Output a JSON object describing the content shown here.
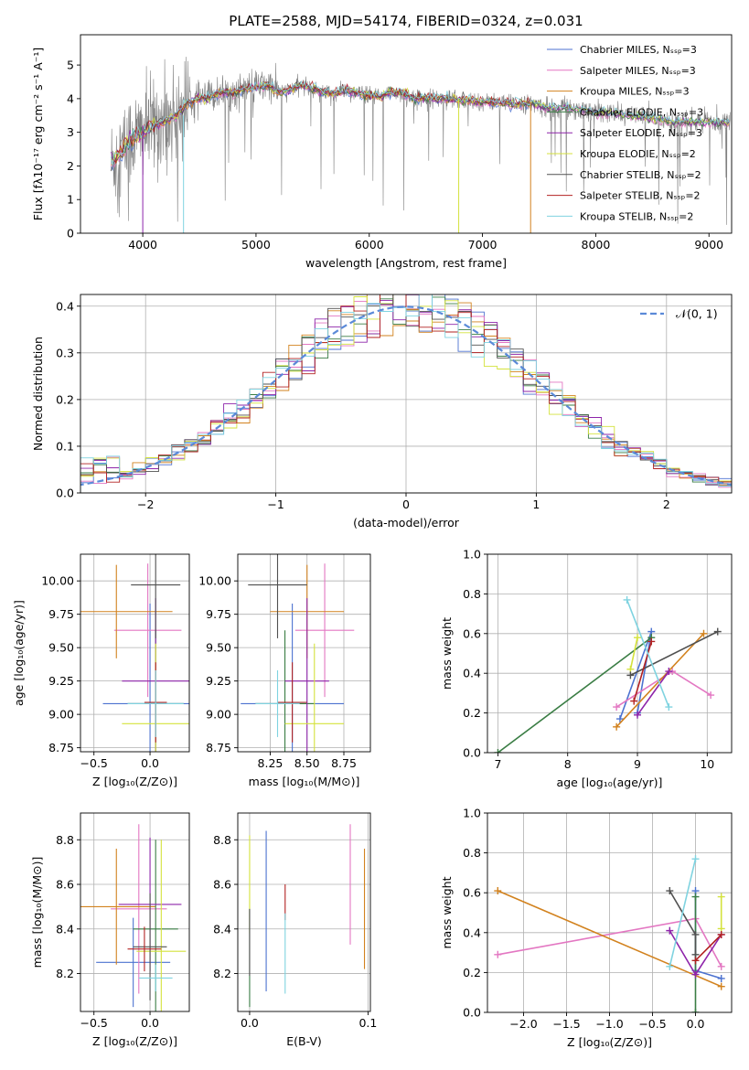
{
  "colors": [
    "#4c72d0",
    "#e377c2",
    "#d2821e",
    "#3a7d44",
    "#8e24aa",
    "#d4e23c",
    "#505050",
    "#b22222",
    "#7fd3e0"
  ],
  "chart_data": [
    {
      "id": "spectrum",
      "type": "line",
      "title": "PLATE=2588, MJD=54174, FIBERID=0324, z=0.031",
      "xlabel": "wavelength [Angstrom, rest frame]",
      "ylabel": "Flux [fλ10⁻¹⁷ erg cm⁻² s⁻¹ A⁻¹]",
      "xlim": [
        3450,
        9200
      ],
      "ylim": [
        0,
        5.9
      ],
      "xticks": [
        "4000",
        "5000",
        "6000",
        "7000",
        "8000",
        "9000"
      ],
      "yticks": [
        "0",
        "1",
        "2",
        "3",
        "4",
        "5"
      ],
      "legend": [
        "Chabrier MILES, Nₛₛₚ=3",
        "Salpeter MILES, Nₛₛₚ=3",
        "Kroupa MILES, Nₛₛₚ=3",
        "Chabrier ELODIE, Nₛₛₚ=3",
        "Salpeter ELODIE, Nₛₛₚ=3",
        "Kroupa ELODIE, Nₛₛₚ=2",
        "Chabrier STELIB, Nₛₛₚ=2",
        "Salpeter STELIB, Nₛₛₚ=2",
        "Kroupa STELIB, Nₛₛₚ=2"
      ],
      "legend_position": "upper right",
      "model_x": [
        3700,
        3800,
        3900,
        4000,
        4100,
        4200,
        4300,
        4400,
        4500,
        4600,
        4700,
        4800,
        4900,
        5000,
        5100,
        5200,
        5300,
        5400,
        5500,
        5600,
        5700,
        5800,
        5900,
        6000,
        6100,
        6200,
        6300,
        6400,
        6500,
        6600,
        6700,
        6800,
        6900,
        7000,
        7100,
        7200,
        7300,
        7400,
        7500,
        7600,
        7700,
        7800,
        7900,
        8000,
        8100,
        8200,
        8300,
        8400,
        8500,
        8600,
        8700,
        8800,
        8900,
        9000,
        9100,
        9200
      ],
      "model_y": [
        2.0,
        2.4,
        2.8,
        3.0,
        3.2,
        3.35,
        3.5,
        3.9,
        4.0,
        4.05,
        4.2,
        4.15,
        4.3,
        4.35,
        4.4,
        4.2,
        4.25,
        4.4,
        4.3,
        4.2,
        4.15,
        4.25,
        4.15,
        4.1,
        4.05,
        4.2,
        4.15,
        4.0,
        4.05,
        4.0,
        4.0,
        3.95,
        3.95,
        3.9,
        3.9,
        3.85,
        3.85,
        3.85,
        3.8,
        3.7,
        3.75,
        3.7,
        3.65,
        3.6,
        3.55,
        3.55,
        3.5,
        3.45,
        3.4,
        3.35,
        3.3,
        3.3,
        3.3,
        3.3,
        3.3,
        3.3
      ]
    },
    {
      "id": "residuals",
      "type": "line",
      "xlabel": "(data-model)/error",
      "ylabel": "Normed distribution",
      "xlim": [
        -2.5,
        2.5
      ],
      "ylim": [
        0,
        0.425
      ],
      "xticks": [
        "−2",
        "−1",
        "0",
        "1",
        "2"
      ],
      "yticks": [
        "0.0",
        "0.1",
        "0.2",
        "0.3",
        "0.4"
      ],
      "legend": [
        "𝒩(0, 1)"
      ]
    },
    {
      "id": "age-vs-z",
      "type": "scatter",
      "xlabel": "Z [log₁₀(Z/Z⊙)]",
      "ylabel": "age  [log₁₀(age/yr)]",
      "xlim": [
        -0.62,
        0.35
      ],
      "ylim": [
        8.72,
        10.2
      ],
      "xticks": [
        "−0.5",
        "0.0"
      ],
      "yticks": [
        "8.75",
        "9.00",
        "9.25",
        "9.50",
        "9.75",
        "10.00"
      ],
      "points": [
        {
          "x": 0.0,
          "y": 9.08,
          "xerr": 0.42,
          "yerr": 0.75,
          "c": 0
        },
        {
          "x": -0.02,
          "y": 9.63,
          "xerr": 0.3,
          "yerr": 0.5,
          "c": 1
        },
        {
          "x": -0.3,
          "y": 9.77,
          "xerr": 0.5,
          "yerr": 0.35,
          "c": 2
        },
        {
          "x": 0.05,
          "y": 9.08,
          "xerr": 0.25,
          "yerr": 0.55,
          "c": 3
        },
        {
          "x": 0.05,
          "y": 9.25,
          "xerr": 0.3,
          "yerr": 0.62,
          "c": 4
        },
        {
          "x": 0.05,
          "y": 8.93,
          "xerr": 0.3,
          "yerr": 0.6,
          "c": 5
        },
        {
          "x": 0.05,
          "y": 9.97,
          "xerr": 0.22,
          "yerr": 0.4,
          "c": 6
        },
        {
          "x": 0.05,
          "y": 9.09,
          "xerr": 0.1,
          "yerr": 0.3,
          "c": 7
        },
        {
          "x": 0.05,
          "y": 9.08,
          "xerr": 0.25,
          "yerr": 0.25,
          "c": 8
        }
      ]
    },
    {
      "id": "age-vs-mass",
      "type": "scatter",
      "xlabel": "mass [log₁₀(M/M⊙)]",
      "xlim": [
        8.03,
        8.93
      ],
      "ylim": [
        8.72,
        10.2
      ],
      "xticks": [
        "8.25",
        "8.50",
        "8.75"
      ],
      "yticks": [
        "8.75",
        "9.00",
        "9.25",
        "9.50",
        "9.75",
        "10.00"
      ],
      "points": [
        {
          "x": 8.4,
          "y": 9.08,
          "xerr": 0.35,
          "yerr": 0.75,
          "c": 0
        },
        {
          "x": 8.62,
          "y": 9.63,
          "xerr": 0.2,
          "yerr": 0.5,
          "c": 1
        },
        {
          "x": 8.5,
          "y": 9.77,
          "xerr": 0.25,
          "yerr": 0.35,
          "c": 2
        },
        {
          "x": 8.35,
          "y": 9.08,
          "xerr": 0.2,
          "yerr": 0.55,
          "c": 3
        },
        {
          "x": 8.5,
          "y": 9.25,
          "xerr": 0.15,
          "yerr": 0.62,
          "c": 4
        },
        {
          "x": 8.55,
          "y": 8.93,
          "xerr": 0.2,
          "yerr": 0.6,
          "c": 5
        },
        {
          "x": 8.3,
          "y": 9.97,
          "xerr": 0.2,
          "yerr": 0.4,
          "c": 6
        },
        {
          "x": 8.4,
          "y": 9.09,
          "xerr": 0.1,
          "yerr": 0.3,
          "c": 7
        },
        {
          "x": 8.3,
          "y": 9.08,
          "xerr": 0.15,
          "yerr": 0.25,
          "c": 8
        }
      ]
    },
    {
      "id": "weight-vs-age",
      "type": "line",
      "xlabel": "age  [log₁₀(age/yr)]",
      "ylabel": "mass weight",
      "xlim": [
        6.85,
        10.35
      ],
      "ylim": [
        0,
        1.0
      ],
      "xticks": [
        "7",
        "8",
        "9",
        "10"
      ],
      "yticks": [
        "0.0",
        "0.2",
        "0.4",
        "0.6",
        "0.8",
        "1.0"
      ],
      "series": [
        {
          "c": 0,
          "x": [
            8.75,
            9.2,
            9.0
          ],
          "y": [
            0.17,
            0.61,
            0.2
          ]
        },
        {
          "c": 1,
          "x": [
            8.7,
            9.5,
            10.05
          ],
          "y": [
            0.23,
            0.41,
            0.29
          ]
        },
        {
          "c": 2,
          "x": [
            8.7,
            9.95
          ],
          "y": [
            0.13,
            0.6
          ]
        },
        {
          "c": 3,
          "x": [
            7.0,
            9.2
          ],
          "y": [
            0.0,
            0.58
          ]
        },
        {
          "c": 4,
          "x": [
            9.0,
            9.45
          ],
          "y": [
            0.19,
            0.41
          ]
        },
        {
          "c": 5,
          "x": [
            8.9,
            9.0
          ],
          "y": [
            0.42,
            0.58
          ]
        },
        {
          "c": 6,
          "x": [
            8.9,
            10.15
          ],
          "y": [
            0.39,
            0.61
          ]
        },
        {
          "c": 7,
          "x": [
            8.95,
            9.2
          ],
          "y": [
            0.26,
            0.56
          ]
        },
        {
          "c": 8,
          "x": [
            8.85,
            9.45
          ],
          "y": [
            0.77,
            0.23
          ]
        }
      ]
    },
    {
      "id": "mass-vs-z",
      "type": "scatter",
      "xlabel": "Z [log₁₀(Z/Z⊙)]",
      "ylabel": "mass [log₁₀(M/M⊙)]",
      "xlim": [
        -0.62,
        0.35
      ],
      "ylim": [
        8.03,
        8.92
      ],
      "xticks": [
        "−0.5",
        "0.0"
      ],
      "yticks": [
        "8.2",
        "8.4",
        "8.6",
        "8.8"
      ],
      "points": [
        {
          "x": -0.15,
          "y": 8.25,
          "xerr": 0.33,
          "yerr": 0.2,
          "c": 0
        },
        {
          "x": -0.1,
          "y": 8.49,
          "xerr": 0.25,
          "yerr": 0.38,
          "c": 1
        },
        {
          "x": -0.3,
          "y": 8.5,
          "xerr": 0.35,
          "yerr": 0.26,
          "c": 2
        },
        {
          "x": 0.05,
          "y": 8.4,
          "xerr": 0.2,
          "yerr": 0.4,
          "c": 3
        },
        {
          "x": 0.0,
          "y": 8.51,
          "xerr": 0.28,
          "yerr": 0.3,
          "c": 4
        },
        {
          "x": 0.1,
          "y": 8.3,
          "xerr": 0.22,
          "yerr": 0.5,
          "c": 5
        },
        {
          "x": 0.0,
          "y": 8.32,
          "xerr": 0.15,
          "yerr": 0.24,
          "c": 6
        },
        {
          "x": -0.05,
          "y": 8.31,
          "xerr": 0.15,
          "yerr": 0.1,
          "c": 7
        },
        {
          "x": 0.05,
          "y": 8.18,
          "xerr": 0.15,
          "yerr": 0.06,
          "c": 8
        }
      ]
    },
    {
      "id": "mass-vs-ebv",
      "type": "scatter",
      "xlabel": "E(B-V)",
      "xlim": [
        -0.01,
        0.102
      ],
      "ylim": [
        8.03,
        8.92
      ],
      "xticks": [
        "0.0",
        "0.1"
      ],
      "yticks": [
        "8.2",
        "8.4",
        "8.6",
        "8.8"
      ],
      "points": [
        {
          "x": 0.014,
          "y": 8.48,
          "yerr": 0.36,
          "c": 0
        },
        {
          "x": 0.085,
          "y": 8.6,
          "yerr": 0.27,
          "c": 1
        },
        {
          "x": 0.097,
          "y": 8.49,
          "yerr": 0.27,
          "c": 2
        },
        {
          "x": 0.0,
          "y": 8.27,
          "yerr": 0.22,
          "c": 3
        },
        {
          "x": 0.0,
          "y": 8.6,
          "yerr": 0.22,
          "c": 5
        },
        {
          "x": 0.0,
          "y": 8.34,
          "yerr": 0.15,
          "c": 6
        },
        {
          "x": 0.03,
          "y": 8.52,
          "yerr": 0.08,
          "c": 7
        },
        {
          "x": 0.03,
          "y": 8.29,
          "yerr": 0.18,
          "c": 8
        }
      ]
    },
    {
      "id": "weight-vs-z",
      "type": "line",
      "xlabel": "Z [log₁₀(Z/Z⊙)]",
      "ylabel": "mass weight",
      "xlim": [
        -2.42,
        0.42
      ],
      "ylim": [
        0,
        1.0
      ],
      "xticks": [
        "−2.0",
        "−1.5",
        "−1.0",
        "−0.5",
        "0.0"
      ],
      "yticks": [
        "0.0",
        "0.2",
        "0.4",
        "0.6",
        "0.8",
        "1.0"
      ],
      "series": [
        {
          "c": 0,
          "x": [
            0.3,
            0.0,
            0.0
          ],
          "y": [
            0.17,
            0.21,
            0.61
          ]
        },
        {
          "c": 1,
          "x": [
            -2.3,
            0.0,
            0.3
          ],
          "y": [
            0.29,
            0.47,
            0.23
          ]
        },
        {
          "c": 2,
          "x": [
            -2.3,
            0.3
          ],
          "y": [
            0.61,
            0.13
          ]
        },
        {
          "c": 3,
          "x": [
            0.0,
            0.0
          ],
          "y": [
            0.0,
            0.58
          ]
        },
        {
          "c": 4,
          "x": [
            -0.3,
            0.0,
            0.3
          ],
          "y": [
            0.41,
            0.19,
            0.39
          ]
        },
        {
          "c": 5,
          "x": [
            0.3,
            0.3
          ],
          "y": [
            0.42,
            0.58
          ]
        },
        {
          "c": 6,
          "x": [
            -0.3,
            0.0,
            0.0
          ],
          "y": [
            0.61,
            0.39,
            0.29
          ]
        },
        {
          "c": 7,
          "x": [
            0.0,
            0.3
          ],
          "y": [
            0.26,
            0.39
          ]
        },
        {
          "c": 8,
          "x": [
            -0.3,
            0.0
          ],
          "y": [
            0.23,
            0.77
          ]
        }
      ]
    }
  ]
}
